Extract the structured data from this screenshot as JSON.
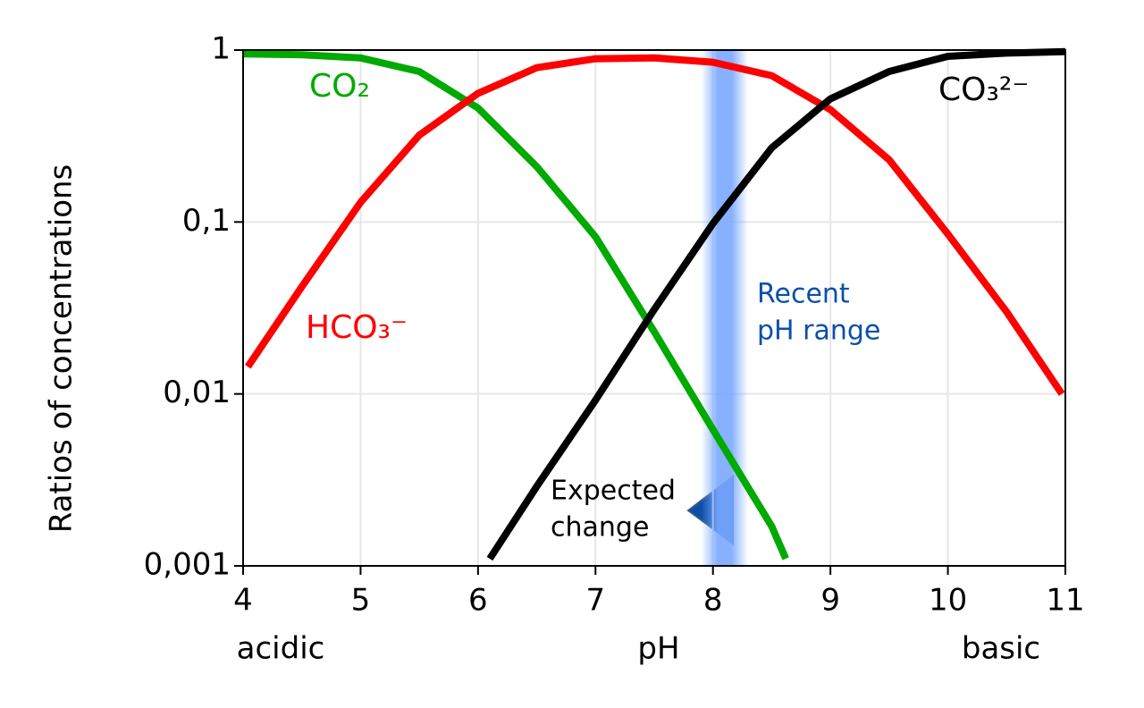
{
  "chart_data": {
    "type": "line",
    "y_label": "Ratios of concentrations",
    "x_label": "pH",
    "x_left_label": "acidic",
    "x_right_label": "basic",
    "log_y": true,
    "grid": true,
    "xlim": [
      4,
      11
    ],
    "xticks": [
      4,
      5,
      6,
      7,
      8,
      9,
      10,
      11
    ],
    "ylim": [
      0.001,
      1
    ],
    "yticks": [
      {
        "value": 0.001,
        "label": "0,001"
      },
      {
        "value": 0.01,
        "label": "0,01"
      },
      {
        "value": 0.1,
        "label": "0,1"
      },
      1
    ],
    "band": {
      "range": [
        7.9,
        8.3
      ],
      "color": "#7aa8ff",
      "label_lines": [
        "Recent",
        "pH range"
      ],
      "label_color": "#0b4fa8"
    },
    "annotation": {
      "lines": [
        "Expected",
        "change"
      ],
      "color": "#0b4fa8"
    },
    "series": [
      {
        "name": "CO₂",
        "color": "#00aa00",
        "x": [
          4,
          4.5,
          5,
          5.5,
          6,
          6.5,
          7,
          7.5,
          8,
          8.5,
          8.62
        ],
        "values": [
          0.95,
          0.94,
          0.9,
          0.75,
          0.46,
          0.21,
          0.082,
          0.023,
          0.0062,
          0.0017,
          0.0011
        ]
      },
      {
        "name": "HCO₃⁻",
        "color": "#ff0000",
        "x": [
          4.04,
          4.5,
          5,
          5.5,
          6,
          6.5,
          7,
          7.5,
          8,
          8.5,
          9,
          9.5,
          10,
          10.5,
          10.97
        ],
        "values": [
          0.0144,
          0.042,
          0.13,
          0.32,
          0.56,
          0.79,
          0.89,
          0.9,
          0.85,
          0.71,
          0.45,
          0.23,
          0.085,
          0.03,
          0.01
        ]
      },
      {
        "name": "CO₃²⁻",
        "color": "#000000",
        "x": [
          6.1,
          6.5,
          7,
          7.5,
          8,
          8.5,
          9,
          9.5,
          10,
          10.5,
          11
        ],
        "values": [
          0.0011,
          0.0029,
          0.0092,
          0.031,
          0.098,
          0.27,
          0.52,
          0.75,
          0.92,
          0.96,
          0.98
        ]
      }
    ]
  }
}
